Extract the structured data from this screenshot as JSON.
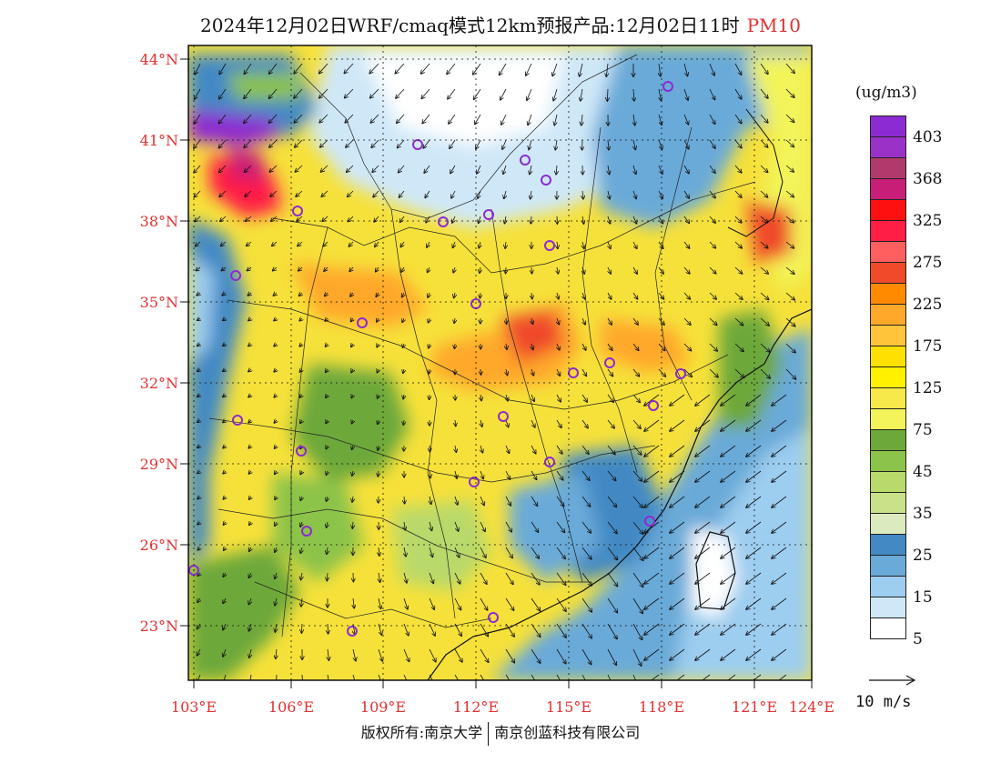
{
  "title": "2024年12月02日WRF/cmaq模式12km预报产品:12月02日11时",
  "variable": "PM10",
  "unit": "(ug/m3)",
  "copyright_left": "版权所有:南京大学",
  "copyright_right": "南京创蓝科技有限公司",
  "wind_reference": "10 m/s",
  "lat_labels": [
    "44°N",
    "41°N",
    "38°N",
    "35°N",
    "32°N",
    "29°N",
    "26°N",
    "23°N"
  ],
  "lon_labels": [
    "103°E",
    "106°E",
    "109°E",
    "112°E",
    "115°E",
    "118°E",
    "121°E",
    "124°E"
  ],
  "legend": {
    "labels": [
      "403",
      "368",
      "325",
      "275",
      "225",
      "175",
      "125",
      "75",
      "45",
      "35",
      "25",
      "15",
      "5"
    ],
    "colors": [
      "#8c2bd1",
      "#9a32c7",
      "#b23a6a",
      "#c81e78",
      "#ff1010",
      "#ff1f46",
      "#ff5f5f",
      "#ef4a2a",
      "#ff8a00",
      "#ffa82a",
      "#ffc43a",
      "#ffe000",
      "#fff100",
      "#f7e94a",
      "#f2f45a",
      "#6da83a",
      "#8cc34a",
      "#b9d96a",
      "#c9e28a",
      "#dbeabf",
      "#4389c4",
      "#6aaad8",
      "#9dcdef",
      "#cfe8f8",
      "#ffffff"
    ]
  },
  "colors": {
    "label_red": "#e23030",
    "frame": "#111111"
  }
}
